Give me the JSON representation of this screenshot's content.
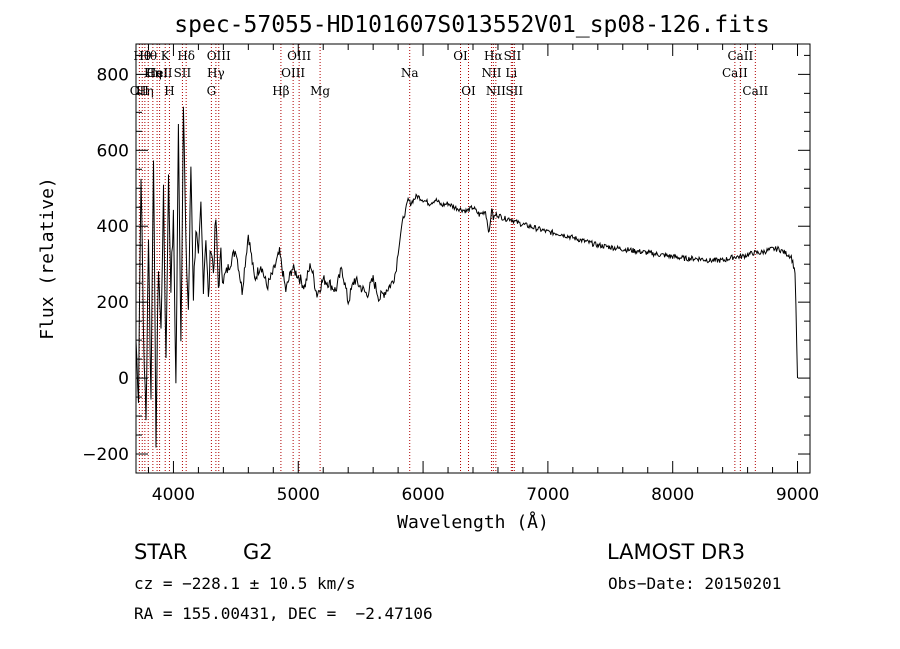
{
  "chart_data": {
    "type": "line",
    "title": "spec-57055-HD101607S013552V01_sp08-126.fits",
    "xlabel": "Wavelength (Å)",
    "ylabel": "Flux (relative)",
    "xlim": [
      3700,
      9100
    ],
    "ylim": [
      -250,
      880
    ],
    "x_ticks": [
      4000,
      5000,
      6000,
      7000,
      8000,
      9000
    ],
    "x_tick_labels": [
      "4000",
      "5000",
      "6000",
      "7000",
      "8000",
      "9000"
    ],
    "y_ticks": [
      -200,
      0,
      200,
      400,
      600,
      800
    ],
    "y_tick_labels": [
      "−200",
      "0",
      "200",
      "400",
      "600",
      "800"
    ],
    "x_minor_step": 200,
    "y_minor_step": 50,
    "spectrum_line_color": "#000000",
    "marker_line_color": "#b00000",
    "series": [
      {
        "name": "flux",
        "x": [
          3700,
          3720,
          3740,
          3760,
          3780,
          3800,
          3820,
          3840,
          3860,
          3880,
          3900,
          3920,
          3940,
          3960,
          3980,
          4000,
          4020,
          4040,
          4060,
          4080,
          4100,
          4120,
          4140,
          4160,
          4180,
          4200,
          4220,
          4240,
          4260,
          4280,
          4300,
          4320,
          4340,
          4360,
          4380,
          4400,
          4450,
          4500,
          4550,
          4600,
          4650,
          4700,
          4750,
          4800,
          4850,
          4900,
          4950,
          5000,
          5050,
          5100,
          5150,
          5200,
          5250,
          5300,
          5350,
          5400,
          5450,
          5500,
          5550,
          5600,
          5650,
          5700,
          5750,
          5780,
          5800,
          5820,
          5840,
          5860,
          5880,
          5900,
          5950,
          6000,
          6050,
          6100,
          6150,
          6200,
          6250,
          6300,
          6350,
          6400,
          6450,
          6500,
          6530,
          6550,
          6563,
          6580,
          6600,
          6650,
          6700,
          6750,
          6800,
          6850,
          6900,
          6950,
          7000,
          7100,
          7200,
          7300,
          7400,
          7500,
          7600,
          7700,
          7800,
          7900,
          8000,
          8100,
          8200,
          8300,
          8400,
          8450,
          8500,
          8550,
          8600,
          8650,
          8700,
          8750,
          8800,
          8850,
          8900,
          8950,
          8980,
          9000
        ],
        "values": [
          100,
          -50,
          550,
          120,
          -120,
          380,
          -60,
          600,
          -160,
          300,
          120,
          480,
          50,
          520,
          250,
          420,
          -20,
          660,
          100,
          720,
          340,
          180,
          560,
          220,
          400,
          300,
          450,
          250,
          380,
          200,
          360,
          280,
          420,
          240,
          320,
          260,
          300,
          340,
          230,
          380,
          260,
          300,
          240,
          280,
          330,
          230,
          290,
          270,
          240,
          300,
          220,
          260,
          250,
          230,
          290,
          200,
          260,
          240,
          220,
          260,
          210,
          230,
          250,
          280,
          330,
          380,
          420,
          440,
          470,
          460,
          480,
          470,
          460,
          470,
          455,
          460,
          450,
          445,
          440,
          450,
          430,
          440,
          380,
          450,
          420,
          430,
          430,
          420,
          420,
          410,
          405,
          400,
          395,
          390,
          385,
          380,
          370,
          360,
          350,
          345,
          340,
          335,
          330,
          325,
          320,
          315,
          315,
          310,
          310,
          315,
          320,
          320,
          325,
          330,
          330,
          335,
          340,
          340,
          330,
          320,
          280,
          0
        ]
      }
    ],
    "line_markers": [
      {
        "x": 3727,
        "label": "OII",
        "row": 3
      },
      {
        "x": 3750,
        "label": "Hθ",
        "row": 1
      },
      {
        "x": 3771,
        "label": "Hη",
        "row": 3
      },
      {
        "x": 3798,
        "label": "Hθ",
        "row": 1
      },
      {
        "x": 3835,
        "label": "Hη",
        "row": 2
      },
      {
        "x": 3869,
        "label": "HeI",
        "row": 2
      },
      {
        "x": 3889,
        "label": "CaII",
        "row": 2
      },
      {
        "x": 3934,
        "label": "K",
        "row": 1
      },
      {
        "x": 3968,
        "label": "H",
        "row": 3
      },
      {
        "x": 4072,
        "label": "SII",
        "row": 2
      },
      {
        "x": 4102,
        "label": "Hδ",
        "row": 1
      },
      {
        "x": 4304,
        "label": "G",
        "row": 3
      },
      {
        "x": 4340,
        "label": "Hγ",
        "row": 2
      },
      {
        "x": 4363,
        "label": "OIII",
        "row": 1
      },
      {
        "x": 4861,
        "label": "Hβ",
        "row": 3
      },
      {
        "x": 4959,
        "label": "OIII",
        "row": 2
      },
      {
        "x": 5007,
        "label": "OIII",
        "row": 1
      },
      {
        "x": 5175,
        "label": "Mg",
        "row": 3
      },
      {
        "x": 5893,
        "label": "Na",
        "row": 2
      },
      {
        "x": 6300,
        "label": "OI",
        "row": 1
      },
      {
        "x": 6364,
        "label": "OI",
        "row": 3
      },
      {
        "x": 6548,
        "label": "NII",
        "row": 2
      },
      {
        "x": 6563,
        "label": "Hα",
        "row": 1
      },
      {
        "x": 6583,
        "label": "NII",
        "row": 3
      },
      {
        "x": 6707,
        "label": "Li",
        "row": 2
      },
      {
        "x": 6716,
        "label": "SII",
        "row": 1
      },
      {
        "x": 6731,
        "label": "SII",
        "row": 3
      },
      {
        "x": 8498,
        "label": "CaII",
        "row": 2
      },
      {
        "x": 8542,
        "label": "CaII",
        "row": 1
      },
      {
        "x": 8662,
        "label": "CaII",
        "row": 3
      }
    ]
  },
  "info": {
    "object_class": "STAR",
    "subclass": "G2",
    "survey": "LAMOST DR3",
    "cz_line": "cz = −228.1 ± 10.5 km/s",
    "obs_date": "Obs−Date: 20150201",
    "coords_line": "RA = 155.00431, DEC =  −2.47106"
  }
}
